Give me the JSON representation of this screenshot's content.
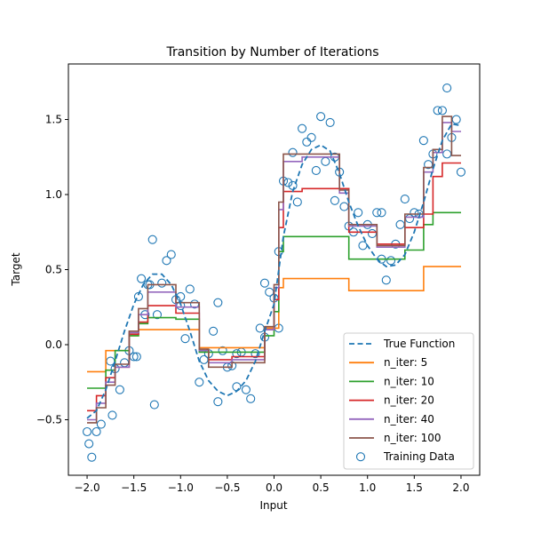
{
  "chart_data": {
    "type": "line",
    "title": "Transition by Number of Iterations",
    "xlabel": "Input",
    "ylabel": "Target",
    "xlim": [
      -2.2,
      2.2
    ],
    "ylim": [
      -0.87,
      1.87
    ],
    "xticks": [
      -2.0,
      -1.5,
      -1.0,
      -0.5,
      0.0,
      0.5,
      1.0,
      1.5,
      2.0
    ],
    "xtick_labels": [
      "−2.0",
      "−1.5",
      "−1.0",
      "−0.5",
      "0.0",
      "0.5",
      "1.0",
      "1.5",
      "2.0"
    ],
    "yticks": [
      -0.5,
      0.0,
      0.5,
      1.0,
      1.5
    ],
    "ytick_labels": [
      "−0.5",
      "0.0",
      "0.5",
      "1.0",
      "1.5"
    ],
    "grid": false,
    "legend_position": "bottom-right",
    "true_function": {
      "name": "True Function",
      "color": "#1f77b4",
      "style": "dashed",
      "x": [
        -2.0,
        -1.9,
        -1.8,
        -1.7,
        -1.6,
        -1.5,
        -1.4,
        -1.3,
        -1.2,
        -1.1,
        -1.0,
        -0.9,
        -0.8,
        -0.7,
        -0.6,
        -0.5,
        -0.4,
        -0.3,
        -0.2,
        -0.1,
        0.0,
        0.1,
        0.2,
        0.3,
        0.4,
        0.5,
        0.6,
        0.7,
        0.8,
        0.9,
        1.0,
        1.1,
        1.2,
        1.3,
        1.4,
        1.5,
        1.6,
        1.7,
        1.8,
        1.9,
        2.0
      ],
      "y": [
        -0.49,
        -0.44,
        -0.3,
        -0.11,
        0.09,
        0.27,
        0.4,
        0.47,
        0.47,
        0.4,
        0.27,
        0.09,
        -0.11,
        -0.24,
        -0.31,
        -0.34,
        -0.31,
        -0.24,
        -0.11,
        0.09,
        0.27,
        0.72,
        1.02,
        1.2,
        1.3,
        1.33,
        1.29,
        1.14,
        0.95,
        0.79,
        0.66,
        0.57,
        0.52,
        0.53,
        0.6,
        0.75,
        0.95,
        1.17,
        1.36,
        1.47,
        1.46
      ]
    },
    "series": [
      {
        "name": "n_iter: 5",
        "color": "#ff7f0e",
        "x": [
          -2.0,
          -1.8,
          -1.8,
          -1.55,
          -1.55,
          -1.45,
          -1.45,
          -0.8,
          -0.8,
          -0.1,
          -0.1,
          0.05,
          0.05,
          0.1,
          0.1,
          0.8,
          0.8,
          1.6,
          1.6,
          2.0
        ],
        "y": [
          -0.18,
          -0.18,
          -0.04,
          -0.04,
          0.06,
          0.06,
          0.1,
          0.1,
          -0.02,
          -0.02,
          0.11,
          0.11,
          0.38,
          0.38,
          0.44,
          0.44,
          0.36,
          0.36,
          0.52,
          0.52
        ]
      },
      {
        "name": "n_iter: 10",
        "color": "#2ca02c",
        "x": [
          -2.0,
          -1.8,
          -1.8,
          -1.7,
          -1.7,
          -1.55,
          -1.55,
          -1.45,
          -1.45,
          -1.35,
          -1.35,
          -1.05,
          -1.05,
          -0.8,
          -0.8,
          -0.1,
          -0.1,
          0.0,
          0.0,
          0.05,
          0.05,
          0.1,
          0.1,
          0.8,
          0.8,
          1.4,
          1.4,
          1.6,
          1.6,
          1.7,
          1.7,
          2.0
        ],
        "y": [
          -0.29,
          -0.29,
          -0.17,
          -0.17,
          -0.04,
          -0.04,
          0.06,
          0.06,
          0.14,
          0.14,
          0.18,
          0.18,
          0.17,
          0.17,
          -0.05,
          -0.05,
          0.06,
          0.06,
          0.22,
          0.22,
          0.62,
          0.62,
          0.72,
          0.72,
          0.57,
          0.57,
          0.63,
          0.63,
          0.8,
          0.8,
          0.88,
          0.88
        ]
      },
      {
        "name": "n_iter: 20",
        "color": "#d62728",
        "x": [
          -2.0,
          -1.9,
          -1.9,
          -1.8,
          -1.8,
          -1.7,
          -1.7,
          -1.55,
          -1.55,
          -1.45,
          -1.45,
          -1.35,
          -1.35,
          -1.05,
          -1.05,
          -0.8,
          -0.8,
          -0.7,
          -0.7,
          -0.45,
          -0.45,
          -0.1,
          -0.1,
          0.0,
          0.0,
          0.05,
          0.05,
          0.1,
          0.1,
          0.3,
          0.3,
          0.8,
          0.8,
          1.1,
          1.1,
          1.4,
          1.4,
          1.6,
          1.6,
          1.7,
          1.7,
          1.8,
          1.8,
          2.0
        ],
        "y": [
          -0.44,
          -0.44,
          -0.34,
          -0.34,
          -0.22,
          -0.22,
          -0.15,
          -0.15,
          0.07,
          0.07,
          0.15,
          0.15,
          0.26,
          0.26,
          0.21,
          0.21,
          -0.04,
          -0.04,
          -0.1,
          -0.1,
          -0.08,
          -0.08,
          0.1,
          0.1,
          0.3,
          0.3,
          0.78,
          0.78,
          1.02,
          1.02,
          1.04,
          1.04,
          0.75,
          0.75,
          0.67,
          0.67,
          0.78,
          0.78,
          0.87,
          0.87,
          1.12,
          1.12,
          1.21,
          1.21
        ]
      },
      {
        "name": "n_iter: 40",
        "color": "#9467bd",
        "x": [
          -2.0,
          -1.9,
          -1.9,
          -1.8,
          -1.8,
          -1.7,
          -1.7,
          -1.55,
          -1.55,
          -1.45,
          -1.45,
          -1.35,
          -1.35,
          -1.05,
          -1.05,
          -0.8,
          -0.8,
          -0.7,
          -0.7,
          -0.45,
          -0.45,
          -0.1,
          -0.1,
          0.0,
          0.0,
          0.05,
          0.05,
          0.1,
          0.1,
          0.3,
          0.3,
          0.7,
          0.7,
          0.8,
          0.8,
          1.1,
          1.1,
          1.4,
          1.4,
          1.6,
          1.6,
          1.7,
          1.7,
          1.8,
          1.8,
          1.9,
          1.9,
          2.0
        ],
        "y": [
          -0.5,
          -0.5,
          -0.39,
          -0.39,
          -0.25,
          -0.25,
          -0.15,
          -0.15,
          0.08,
          0.08,
          0.2,
          0.2,
          0.35,
          0.35,
          0.25,
          0.25,
          -0.04,
          -0.04,
          -0.12,
          -0.12,
          -0.1,
          -0.1,
          0.1,
          0.1,
          0.38,
          0.38,
          0.9,
          0.9,
          1.22,
          1.22,
          1.25,
          1.25,
          1.01,
          1.01,
          0.79,
          0.79,
          0.65,
          0.65,
          0.85,
          0.85,
          1.15,
          1.15,
          1.28,
          1.28,
          1.48,
          1.48,
          1.42,
          1.42
        ]
      },
      {
        "name": "n_iter: 100",
        "color": "#8c564b",
        "x": [
          -2.0,
          -1.9,
          -1.9,
          -1.8,
          -1.8,
          -1.7,
          -1.7,
          -1.55,
          -1.55,
          -1.45,
          -1.45,
          -1.35,
          -1.35,
          -1.05,
          -1.05,
          -0.8,
          -0.8,
          -0.7,
          -0.7,
          -0.45,
          -0.45,
          -0.1,
          -0.1,
          0.0,
          0.0,
          0.05,
          0.05,
          0.1,
          0.1,
          0.3,
          0.3,
          0.7,
          0.7,
          0.8,
          0.8,
          1.1,
          1.1,
          1.4,
          1.4,
          1.6,
          1.6,
          1.7,
          1.7,
          1.8,
          1.8,
          1.9,
          1.9,
          2.0
        ],
        "y": [
          -0.52,
          -0.52,
          -0.42,
          -0.42,
          -0.27,
          -0.27,
          -0.13,
          -0.13,
          0.09,
          0.09,
          0.24,
          0.24,
          0.4,
          0.4,
          0.28,
          0.28,
          -0.03,
          -0.03,
          -0.15,
          -0.15,
          -0.12,
          -0.12,
          0.12,
          0.12,
          0.4,
          0.4,
          0.95,
          0.95,
          1.27,
          1.27,
          1.27,
          1.27,
          1.03,
          1.03,
          0.8,
          0.8,
          0.66,
          0.66,
          0.87,
          0.87,
          1.18,
          1.18,
          1.3,
          1.3,
          1.52,
          1.52,
          1.26,
          1.26
        ]
      }
    ],
    "scatter": {
      "name": "Training Data",
      "color": "#1f77b4",
      "x": [
        -2.0,
        -1.95,
        -1.9,
        -1.85,
        -1.75,
        -1.73,
        -1.65,
        -1.6,
        -1.55,
        -1.5,
        -1.47,
        -1.42,
        -1.38,
        -1.33,
        -1.3,
        -1.25,
        -1.2,
        -1.15,
        -1.1,
        -1.05,
        -1.0,
        -0.95,
        -0.9,
        -0.85,
        -0.8,
        -0.75,
        -0.7,
        -0.65,
        -0.6,
        -0.55,
        -0.5,
        -0.45,
        -0.4,
        -0.35,
        -0.3,
        -0.25,
        -0.2,
        -0.15,
        -0.1,
        -0.05,
        0.0,
        0.05,
        0.1,
        0.15,
        0.2,
        0.25,
        0.3,
        0.35,
        0.4,
        0.45,
        0.5,
        0.55,
        0.6,
        0.65,
        0.7,
        0.75,
        0.8,
        0.85,
        0.9,
        0.95,
        1.0,
        1.05,
        1.1,
        1.15,
        1.2,
        1.25,
        1.3,
        1.35,
        1.4,
        1.45,
        1.5,
        1.55,
        1.6,
        1.65,
        1.7,
        1.75,
        1.8,
        1.85,
        1.9,
        1.95,
        2.0,
        -1.98,
        -1.7,
        -1.45,
        -1.35,
        -1.0,
        -0.6,
        -0.4,
        -0.1,
        0.05,
        0.2,
        0.65,
        1.15,
        1.85,
        -1.28
      ],
      "y": [
        -0.58,
        -0.75,
        -0.58,
        -0.53,
        -0.11,
        -0.47,
        -0.3,
        -0.12,
        -0.04,
        -0.08,
        -0.08,
        0.44,
        0.2,
        0.4,
        0.7,
        0.2,
        0.41,
        0.56,
        0.6,
        0.3,
        0.32,
        0.04,
        0.37,
        0.27,
        -0.25,
        -0.1,
        -0.06,
        0.09,
        -0.38,
        -0.04,
        -0.15,
        -0.14,
        -0.06,
        -0.05,
        -0.3,
        -0.36,
        -0.06,
        0.11,
        0.41,
        0.35,
        0.31,
        0.62,
        1.09,
        1.08,
        1.28,
        0.95,
        1.44,
        1.35,
        1.38,
        1.16,
        1.52,
        1.22,
        1.48,
        0.96,
        1.15,
        0.92,
        0.79,
        0.75,
        0.88,
        0.66,
        0.8,
        0.74,
        0.88,
        0.57,
        0.43,
        0.56,
        0.67,
        0.8,
        0.97,
        0.84,
        0.88,
        0.87,
        1.36,
        1.2,
        1.27,
        1.56,
        1.56,
        1.71,
        1.38,
        1.5,
        1.15,
        -0.66,
        -0.16,
        0.32,
        0.4,
        0.26,
        0.28,
        -0.28,
        0.05,
        0.11,
        1.06,
        1.25,
        0.88,
        1.27,
        -0.4
      ]
    },
    "legend": [
      "True Function",
      "n_iter: 5",
      "n_iter: 10",
      "n_iter: 20",
      "n_iter: 40",
      "n_iter: 100",
      "Training Data"
    ]
  }
}
